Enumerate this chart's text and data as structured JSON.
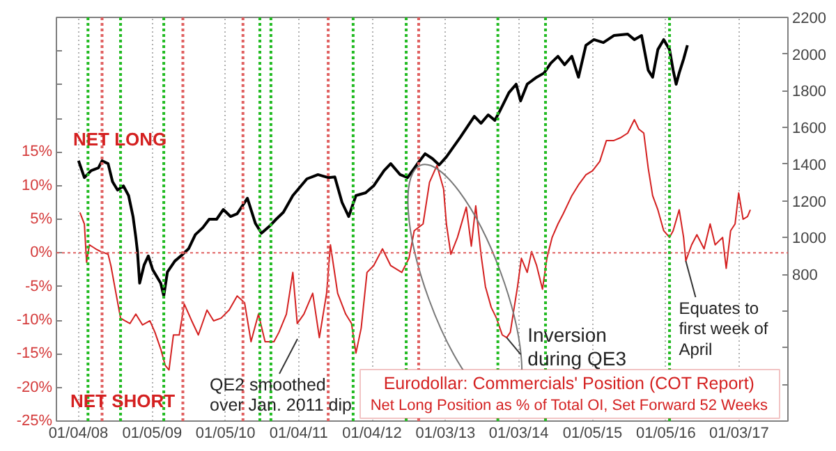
{
  "chart_data": {
    "type": "line",
    "title": "Eurodollar: Commercials' Position (COT Report)",
    "subtitle": "Net Long Position as % of Total OI, Set Forward 52 Weeks",
    "xlim": [
      "2007-09-17",
      "2017-09-03"
    ],
    "xticks": [
      {
        "value": "2008-01-04",
        "label": "01/04/08"
      },
      {
        "value": "2009-01-05",
        "label": "01/05/09"
      },
      {
        "value": "2010-01-05",
        "label": "01/05/10"
      },
      {
        "value": "2011-01-04",
        "label": "01/04/11"
      },
      {
        "value": "2012-01-04",
        "label": "01/04/12"
      },
      {
        "value": "2013-01-03",
        "label": "01/03/13"
      },
      {
        "value": "2014-01-03",
        "label": "01/03/14"
      },
      {
        "value": "2015-01-05",
        "label": "01/05/15"
      },
      {
        "value": "2016-01-05",
        "label": "01/05/16"
      },
      {
        "value": "2017-01-03",
        "label": "01/03/17"
      }
    ],
    "ylim": [
      -25,
      35
    ],
    "yticks": [
      {
        "value": -25,
        "label": "-25%"
      },
      {
        "value": -20,
        "label": "-20%"
      },
      {
        "value": -15,
        "label": "-15%"
      },
      {
        "value": -10,
        "label": "-10%"
      },
      {
        "value": -5,
        "label": "-5%"
      },
      {
        "value": 0,
        "label": "0%"
      },
      {
        "value": 5,
        "label": "5%"
      },
      {
        "value": 10,
        "label": "10%"
      },
      {
        "value": 15,
        "label": "15%"
      },
      {
        "value": 20,
        "label": null
      },
      {
        "value": 25,
        "label": null
      },
      {
        "value": 30,
        "label": null
      }
    ],
    "y2lim": [
      0,
      2200
    ],
    "y2ticks": [
      {
        "value": 200,
        "label": null
      },
      {
        "value": 400,
        "label": null
      },
      {
        "value": 600,
        "label": null
      },
      800,
      1000,
      1200,
      1400,
      1600,
      1800,
      2000,
      2200
    ],
    "grid": "x",
    "marker": "none",
    "line_style": "solid",
    "series": [
      {
        "color": "#000000",
        "axis": "y2",
        "x": [
          "2008-01-05",
          "2008-02-03",
          "2008-03-08",
          "2008-04-13",
          "2008-05-01",
          "2008-05-31",
          "2008-06-22",
          "2008-07-17",
          "2008-08-15",
          "2008-09-10",
          "2008-10-02",
          "2008-10-16",
          "2008-10-24",
          "2008-11-04",
          "2008-11-26",
          "2008-12-17",
          "2009-01-08",
          "2009-02-17",
          "2009-03-04",
          "2009-03-22",
          "2009-04-28",
          "2009-05-31",
          "2009-07-06",
          "2009-08-08",
          "2009-09-14",
          "2009-10-16",
          "2009-11-22",
          "2009-12-25",
          "2010-01-30",
          "2010-03-04",
          "2010-04-24",
          "2010-06-03",
          "2010-07-03",
          "2010-08-12",
          "2010-09-14",
          "2010-10-20",
          "2010-12-06",
          "2011-02-14",
          "2011-04-10",
          "2011-05-31",
          "2011-07-03",
          "2011-08-08",
          "2011-09-10",
          "2011-10-16",
          "2011-12-03",
          "2012-01-12",
          "2012-03-04",
          "2012-04-06",
          "2012-05-23",
          "2012-06-29",
          "2012-08-23",
          "2012-09-24",
          "2012-10-31",
          "2012-12-03",
          "2013-01-08",
          "2013-03-19",
          "2013-05-27",
          "2013-06-29",
          "2013-08-04",
          "2013-09-06",
          "2013-09-28",
          "2013-11-15",
          "2013-12-21",
          "2014-01-12",
          "2014-02-14",
          "2014-04-02",
          "2014-05-09",
          "2014-06-11",
          "2014-07-17",
          "2014-08-19",
          "2014-09-24",
          "2014-10-27",
          "2014-12-03",
          "2015-01-12",
          "2015-02-28",
          "2015-04-21",
          "2015-06-29",
          "2015-08-01",
          "2015-09-06",
          "2015-10-09",
          "2015-10-31",
          "2015-11-26",
          "2015-12-25",
          "2016-01-23",
          "2016-02-10",
          "2016-02-25",
          "2016-03-11",
          "2016-04-02",
          "2016-04-21"
        ],
        "values": [
          1419,
          1327,
          1365,
          1380,
          1418,
          1403,
          1305,
          1259,
          1282,
          1229,
          1115,
          1001,
          925,
          752,
          850,
          900,
          825,
          751,
          683,
          812,
          872,
          903,
          940,
          1016,
          1054,
          1100,
          1100,
          1153,
          1115,
          1130,
          1214,
          1077,
          1024,
          1062,
          1100,
          1138,
          1229,
          1320,
          1343,
          1327,
          1330,
          1191,
          1115,
          1229,
          1244,
          1282,
          1365,
          1403,
          1343,
          1327,
          1411,
          1457,
          1430,
          1396,
          1440,
          1548,
          1661,
          1623,
          1669,
          1639,
          1684,
          1790,
          1836,
          1745,
          1836,
          1874,
          1897,
          1950,
          1988,
          1942,
          1988,
          1874,
          2048,
          2079,
          2063,
          2101,
          2109,
          2079,
          2101,
          1912,
          1874,
          2025,
          2079,
          2025,
          1912,
          1836,
          1897,
          1973,
          2048
        ]
      },
      {
        "color": "#d42020",
        "x": [
          "2008-01-12",
          "2008-02-03",
          "2008-02-14",
          "2008-02-28",
          "2008-03-30",
          "2008-04-24",
          "2008-05-31",
          "2008-06-14",
          "2008-07-03",
          "2008-08-01",
          "2008-08-23",
          "2008-09-17",
          "2008-10-16",
          "2008-11-18",
          "2008-12-25",
          "2009-01-19",
          "2009-02-17",
          "2009-03-11",
          "2009-03-30",
          "2009-04-21",
          "2009-05-20",
          "2009-06-14",
          "2009-07-21",
          "2009-08-23",
          "2009-10-05",
          "2009-11-07",
          "2009-12-14",
          "2010-01-23",
          "2010-03-04",
          "2010-04-10",
          "2010-05-12",
          "2010-06-18",
          "2010-07-21",
          "2010-09-03",
          "2010-09-28",
          "2010-11-04",
          "2010-12-06",
          "2010-12-28",
          "2011-01-30",
          "2011-03-15",
          "2011-04-17",
          "2011-05-23",
          "2011-06-11",
          "2011-07-17",
          "2011-08-26",
          "2011-09-24",
          "2011-10-16",
          "2011-11-11",
          "2011-12-10",
          "2012-01-12",
          "2012-02-25",
          "2012-04-06",
          "2012-05-31",
          "2012-07-06",
          "2012-08-01",
          "2012-09-14",
          "2012-10-16",
          "2012-11-22",
          "2012-12-25",
          "2013-01-08",
          "2013-01-30",
          "2013-03-04",
          "2013-04-17",
          "2013-05-12",
          "2013-06-03",
          "2013-06-29",
          "2013-07-21",
          "2013-08-19",
          "2013-09-14",
          "2013-10-13",
          "2013-11-04",
          "2013-11-22",
          "2013-12-06",
          "2013-12-28",
          "2014-01-16",
          "2014-02-14",
          "2014-03-08",
          "2014-04-02",
          "2014-05-01",
          "2014-05-23",
          "2014-06-18",
          "2014-07-17",
          "2014-08-12",
          "2014-09-24",
          "2014-10-27",
          "2014-12-03",
          "2015-01-05",
          "2015-02-10",
          "2015-03-15",
          "2015-04-21",
          "2015-05-23",
          "2015-06-29",
          "2015-08-01",
          "2015-08-23",
          "2015-09-17",
          "2015-10-09",
          "2015-10-31",
          "2015-11-26",
          "2015-12-25",
          "2016-01-23",
          "2016-02-10",
          "2016-03-11",
          "2016-04-02",
          "2016-04-13",
          "2016-05-12",
          "2016-06-07",
          "2016-07-13",
          "2016-08-12",
          "2016-09-06",
          "2016-10-13",
          "2016-10-31",
          "2016-11-22",
          "2016-12-14",
          "2017-01-01",
          "2017-01-23",
          "2017-02-14",
          "2017-02-28"
        ],
        "values": [
          6.0,
          4.3,
          -1.4,
          1.2,
          0.6,
          0.2,
          -0.2,
          -1.9,
          -5.0,
          -9.7,
          -10.1,
          -10.5,
          -9.1,
          -10.7,
          -10.1,
          -11.8,
          -14.3,
          -16.7,
          -17.4,
          -12.2,
          -12.2,
          -7.6,
          -10.1,
          -12.2,
          -8.5,
          -10.1,
          -9.7,
          -8.5,
          -6.4,
          -7.4,
          -13.2,
          -9.1,
          -13.2,
          -13.2,
          -11.8,
          -9.1,
          -2.9,
          -10.5,
          -9.1,
          -6.0,
          -12.6,
          -6.0,
          1.2,
          -6.0,
          -9.1,
          -10.5,
          -14.9,
          -11.2,
          -2.9,
          -1.9,
          0.6,
          -1.9,
          -2.9,
          -0.8,
          3.3,
          4.3,
          10.5,
          13.0,
          9.5,
          4.3,
          -0.2,
          2.3,
          6.8,
          1.0,
          7.0,
          -0.2,
          -5.0,
          -8.1,
          -9.7,
          -12.2,
          -12.6,
          -11.8,
          -9.1,
          -5.0,
          -0.8,
          -2.9,
          0.2,
          -1.9,
          -5.4,
          -0.8,
          2.3,
          4.3,
          5.8,
          8.5,
          10.1,
          11.6,
          12.2,
          13.6,
          16.7,
          16.7,
          17.1,
          17.8,
          19.8,
          18.4,
          17.8,
          12.6,
          8.5,
          6.4,
          3.3,
          2.3,
          3.3,
          6.4,
          2.3,
          -1.2,
          1.2,
          2.7,
          0.6,
          4.3,
          1.2,
          2.3,
          -2.3,
          3.3,
          4.3,
          8.9,
          5.0,
          5.4,
          6.4
        ]
      }
    ],
    "ref_lines": [
      {
        "axis": "y",
        "value": 0,
        "color": "#e06060",
        "line_style": "dotted"
      },
      {
        "axis": "x",
        "value": "2008-02-21",
        "color": "#22bb22",
        "line_style": "dotted"
      },
      {
        "axis": "x",
        "value": "2008-08-01",
        "color": "#22bb22",
        "line_style": "dotted"
      },
      {
        "axis": "x",
        "value": "2009-03-04",
        "color": "#22bb22",
        "line_style": "dotted"
      },
      {
        "axis": "x",
        "value": "2010-06-25",
        "color": "#22bb22",
        "line_style": "dotted"
      },
      {
        "axis": "x",
        "value": "2010-08-19",
        "color": "#22bb22",
        "line_style": "dotted"
      },
      {
        "axis": "x",
        "value": "2011-10-02",
        "color": "#22bb22",
        "line_style": "dotted"
      },
      {
        "axis": "x",
        "value": "2012-06-22",
        "color": "#22bb22",
        "line_style": "dotted"
      },
      {
        "axis": "x",
        "value": "2013-09-21",
        "color": "#22bb22",
        "line_style": "dotted"
      },
      {
        "axis": "x",
        "value": "2014-05-16",
        "color": "#22bb22",
        "line_style": "dotted"
      },
      {
        "axis": "x",
        "value": "2016-01-23",
        "color": "#22bb22",
        "line_style": "dotted"
      },
      {
        "axis": "x",
        "value": "2008-05-01",
        "color": "#e06060",
        "line_style": "dotted"
      },
      {
        "axis": "x",
        "value": "2009-06-07",
        "color": "#e06060",
        "line_style": "dotted"
      },
      {
        "axis": "x",
        "value": "2010-04-02",
        "color": "#e06060",
        "line_style": "dotted"
      },
      {
        "axis": "x",
        "value": "2011-05-31",
        "color": "#e06060",
        "line_style": "dotted"
      },
      {
        "axis": "x",
        "value": "2012-08-23",
        "color": "#e06060",
        "line_style": "dotted"
      }
    ],
    "annotations": [
      "NET LONG",
      "NET SHORT",
      "QE2 smoothed\nover Jan. 2011 dip",
      {
        "text": "Inversion\nduring QE3",
        "x": "2013-11-04",
        "y": -12.6
      },
      {
        "text": "Equates to\nfirst week of\nApril",
        "x": "2016-04-13",
        "y": -1.2
      }
    ]
  }
}
